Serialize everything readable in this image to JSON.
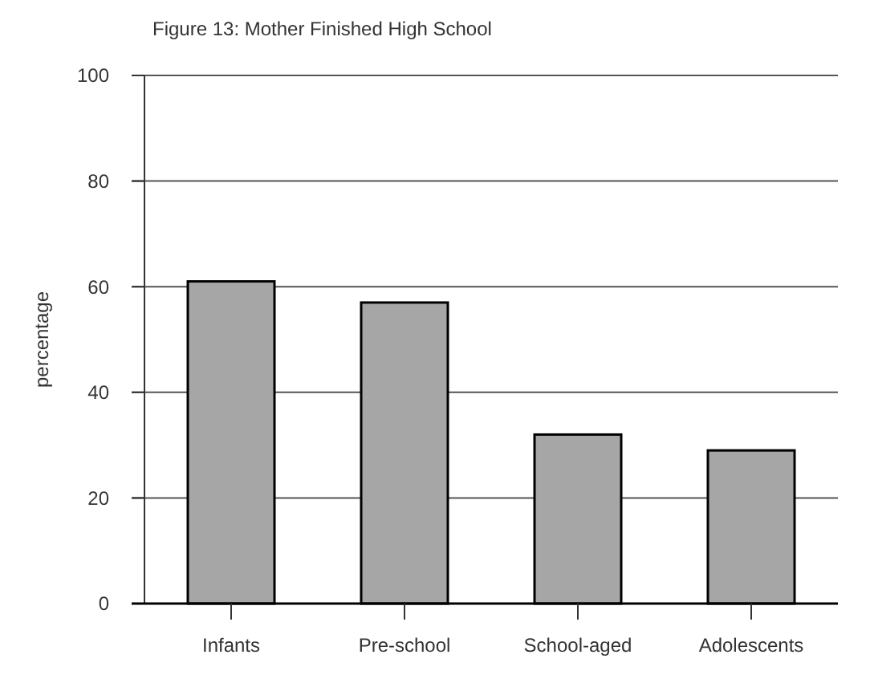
{
  "chart_data": {
    "type": "bar",
    "title": "Figure 13: Mother Finished High School",
    "ylabel": "percentage",
    "categories": [
      "Infants",
      "Pre-school",
      "School-aged",
      "Adolescents"
    ],
    "values": [
      61,
      57,
      32,
      29
    ],
    "color": "#a6a6a6",
    "ylim": [
      0,
      100
    ],
    "yticks": [
      0,
      20,
      40,
      60,
      80,
      100
    ],
    "grid": "y"
  }
}
